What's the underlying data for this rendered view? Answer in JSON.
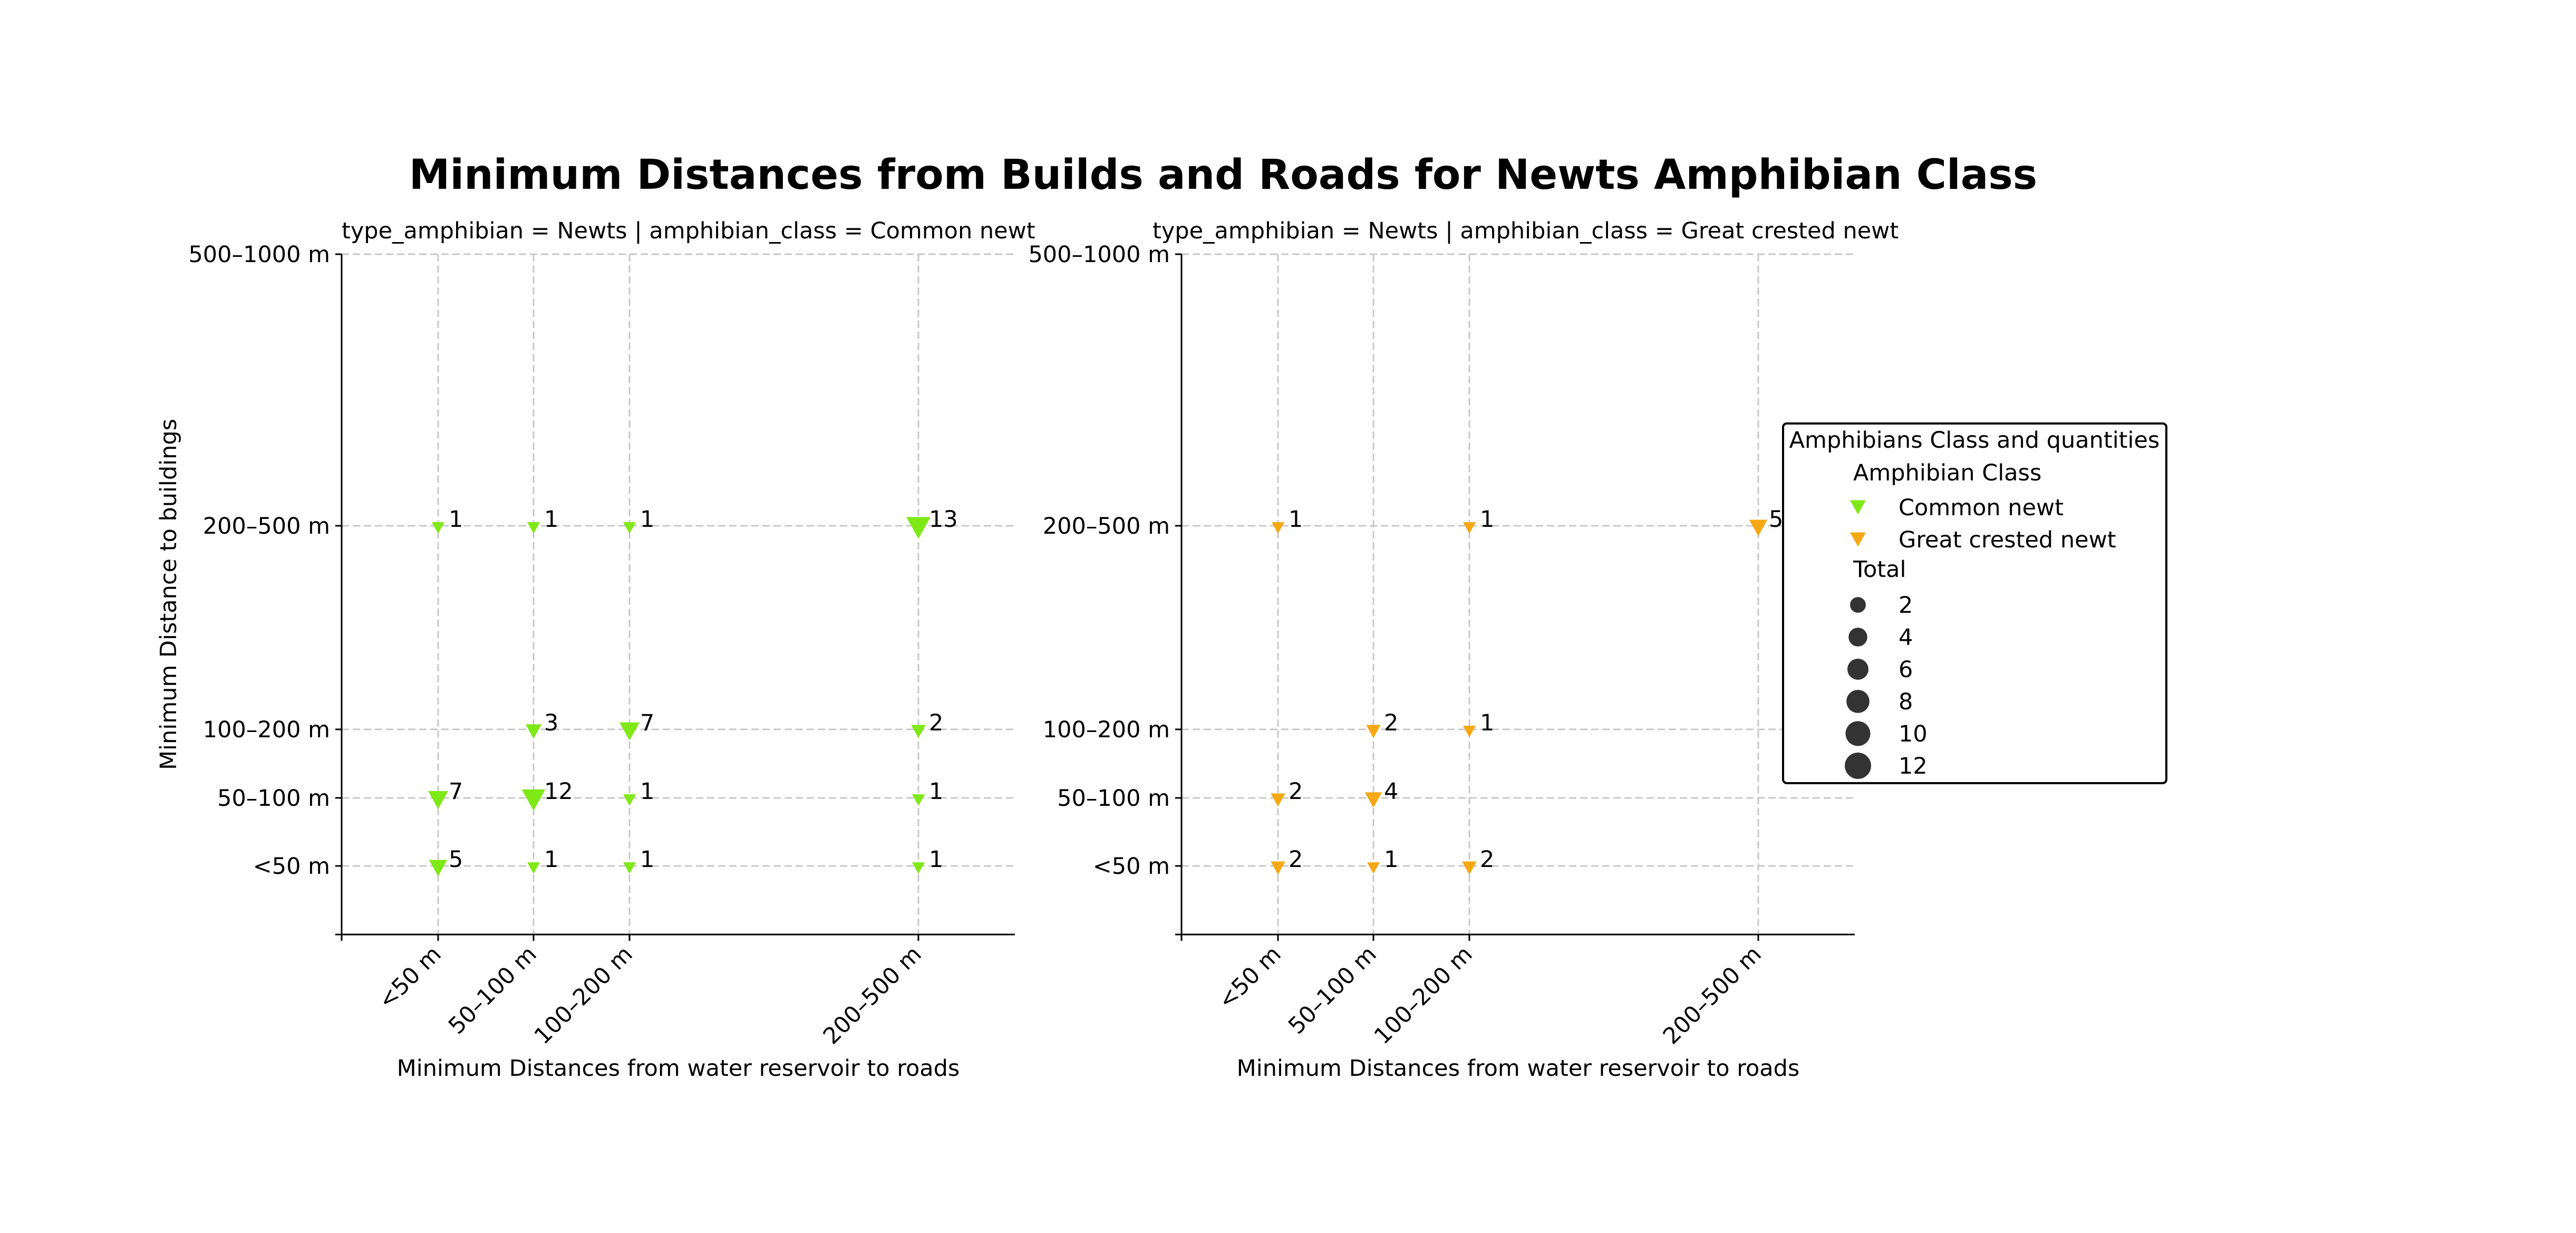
{
  "chart_data": {
    "type": "scatter",
    "title": "Minimum Distances from Builds and Roads for Newts Amphibian Class",
    "x_categories": [
      "<50 m",
      "50–100 m",
      "100–200 m",
      "200–500 m"
    ],
    "y_categories": [
      "<50 m",
      "50–100 m",
      "100–200 m",
      "200–500 m",
      "500–1000 m"
    ],
    "xlabel": "Minimum Distances from water reservoir to roads",
    "ylabel": "Minimum Distance to buildings",
    "grid": true,
    "marker": "triangle-down",
    "panels": [
      {
        "subtitle": "type_amphibian = Newts | amphibian_class = Common newt",
        "series": "Common newt",
        "color": "#7fe817",
        "points": [
          {
            "x": "<50 m",
            "y": "200–500 m",
            "total": 1
          },
          {
            "x": "50–100 m",
            "y": "200–500 m",
            "total": 1
          },
          {
            "x": "100–200 m",
            "y": "200–500 m",
            "total": 1
          },
          {
            "x": "200–500 m",
            "y": "200–500 m",
            "total": 13
          },
          {
            "x": "50–100 m",
            "y": "100–200 m",
            "total": 3
          },
          {
            "x": "100–200 m",
            "y": "100–200 m",
            "total": 7
          },
          {
            "x": "200–500 m",
            "y": "100–200 m",
            "total": 2
          },
          {
            "x": "<50 m",
            "y": "50–100 m",
            "total": 7
          },
          {
            "x": "50–100 m",
            "y": "50–100 m",
            "total": 12
          },
          {
            "x": "100–200 m",
            "y": "50–100 m",
            "total": 1
          },
          {
            "x": "200–500 m",
            "y": "50–100 m",
            "total": 1
          },
          {
            "x": "<50 m",
            "y": "<50 m",
            "total": 5
          },
          {
            "x": "50–100 m",
            "y": "<50 m",
            "total": 1
          },
          {
            "x": "100–200 m",
            "y": "<50 m",
            "total": 1
          },
          {
            "x": "200–500 m",
            "y": "<50 m",
            "total": 1
          }
        ]
      },
      {
        "subtitle": "type_amphibian = Newts | amphibian_class = Great crested newt",
        "series": "Great crested newt",
        "color": "#f5a814",
        "points": [
          {
            "x": "<50 m",
            "y": "200–500 m",
            "total": 1
          },
          {
            "x": "100–200 m",
            "y": "200–500 m",
            "total": 1
          },
          {
            "x": "200–500 m",
            "y": "200–500 m",
            "total": 5
          },
          {
            "x": "50–100 m",
            "y": "100–200 m",
            "total": 2
          },
          {
            "x": "100–200 m",
            "y": "100–200 m",
            "total": 1
          },
          {
            "x": "<50 m",
            "y": "50–100 m",
            "total": 2
          },
          {
            "x": "50–100 m",
            "y": "50–100 m",
            "total": 4
          },
          {
            "x": "<50 m",
            "y": "<50 m",
            "total": 2
          },
          {
            "x": "50–100 m",
            "y": "<50 m",
            "total": 1
          },
          {
            "x": "100–200 m",
            "y": "<50 m",
            "total": 2
          }
        ]
      }
    ],
    "legend": {
      "title": "Amphibians Class and quantities",
      "class_heading": "Amphibian Class",
      "classes": [
        {
          "name": "Common newt",
          "color": "#7fe817"
        },
        {
          "name": "Great crested newt",
          "color": "#f5a814"
        }
      ],
      "size_heading": "Total",
      "sizes": [
        2,
        4,
        6,
        8,
        10,
        12
      ],
      "size_color": "#333333",
      "placement": "right"
    }
  }
}
